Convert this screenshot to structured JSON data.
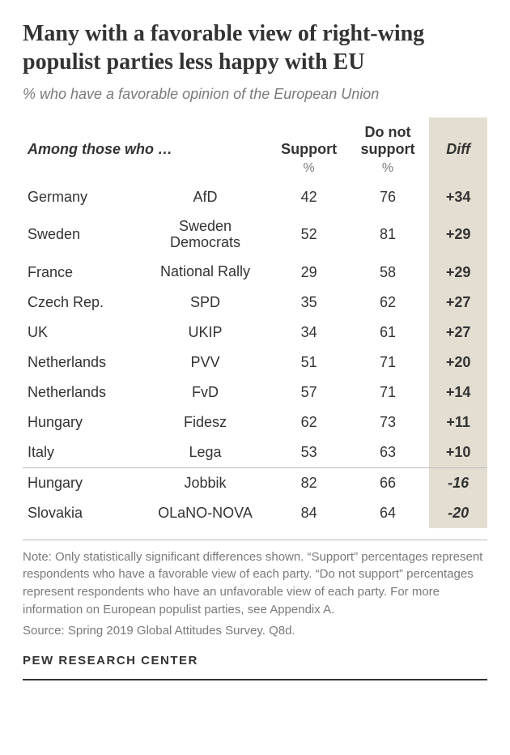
{
  "title": "Many with a favorable view of right-wing populist parties less happy with EU",
  "subtitle": "% who have a favorable opinion of the European Union",
  "columns": {
    "among": "Among those who …",
    "support": "Support",
    "not_support": "Do not support",
    "diff": "Diff",
    "unit": "%"
  },
  "rows": [
    {
      "country": "Germany",
      "party": "AfD",
      "support": 42,
      "not_support": 76,
      "diff": "+34",
      "neg": false
    },
    {
      "country": "Sweden",
      "party": "Sweden Democrats",
      "support": 52,
      "not_support": 81,
      "diff": "+29",
      "neg": false
    },
    {
      "country": "France",
      "party": "National Rally",
      "support": 29,
      "not_support": 58,
      "diff": "+29",
      "neg": false
    },
    {
      "country": "Czech Rep.",
      "party": "SPD",
      "support": 35,
      "not_support": 62,
      "diff": "+27",
      "neg": false
    },
    {
      "country": "UK",
      "party": "UKIP",
      "support": 34,
      "not_support": 61,
      "diff": "+27",
      "neg": false
    },
    {
      "country": "Netherlands",
      "party": "PVV",
      "support": 51,
      "not_support": 71,
      "diff": "+20",
      "neg": false
    },
    {
      "country": "Netherlands",
      "party": "FvD",
      "support": 57,
      "not_support": 71,
      "diff": "+14",
      "neg": false
    },
    {
      "country": "Hungary",
      "party": "Fidesz",
      "support": 62,
      "not_support": 73,
      "diff": "+11",
      "neg": false
    },
    {
      "country": "Italy",
      "party": "Lega",
      "support": 53,
      "not_support": 63,
      "diff": "+10",
      "neg": false
    },
    {
      "country": "Hungary",
      "party": "Jobbik",
      "support": 82,
      "not_support": 66,
      "diff": "-16",
      "neg": true
    },
    {
      "country": "Slovakia",
      "party": "OLaNO-NOVA",
      "support": 84,
      "not_support": 64,
      "diff": "-20",
      "neg": true
    }
  ],
  "separator_after_index": 8,
  "note": "Note: Only statistically significant differences shown. “Support” percentages represent respondents who have a favorable view of each party. “Do not support” percentages represent respondents who have an unfavorable view of each party. For more information on European populist parties, see Appendix A.",
  "source": "Source: Spring 2019 Global Attitudes Survey. Q8d.",
  "attribution": "PEW RESEARCH CENTER",
  "style": {
    "diff_bg": "#e4ded2",
    "text_color": "#333333",
    "muted_color": "#7a7a7a",
    "rule_color": "#bdbdbd",
    "title_fontsize": 28,
    "subtitle_fontsize": 18,
    "body_fontsize": 18,
    "note_fontsize": 15
  }
}
